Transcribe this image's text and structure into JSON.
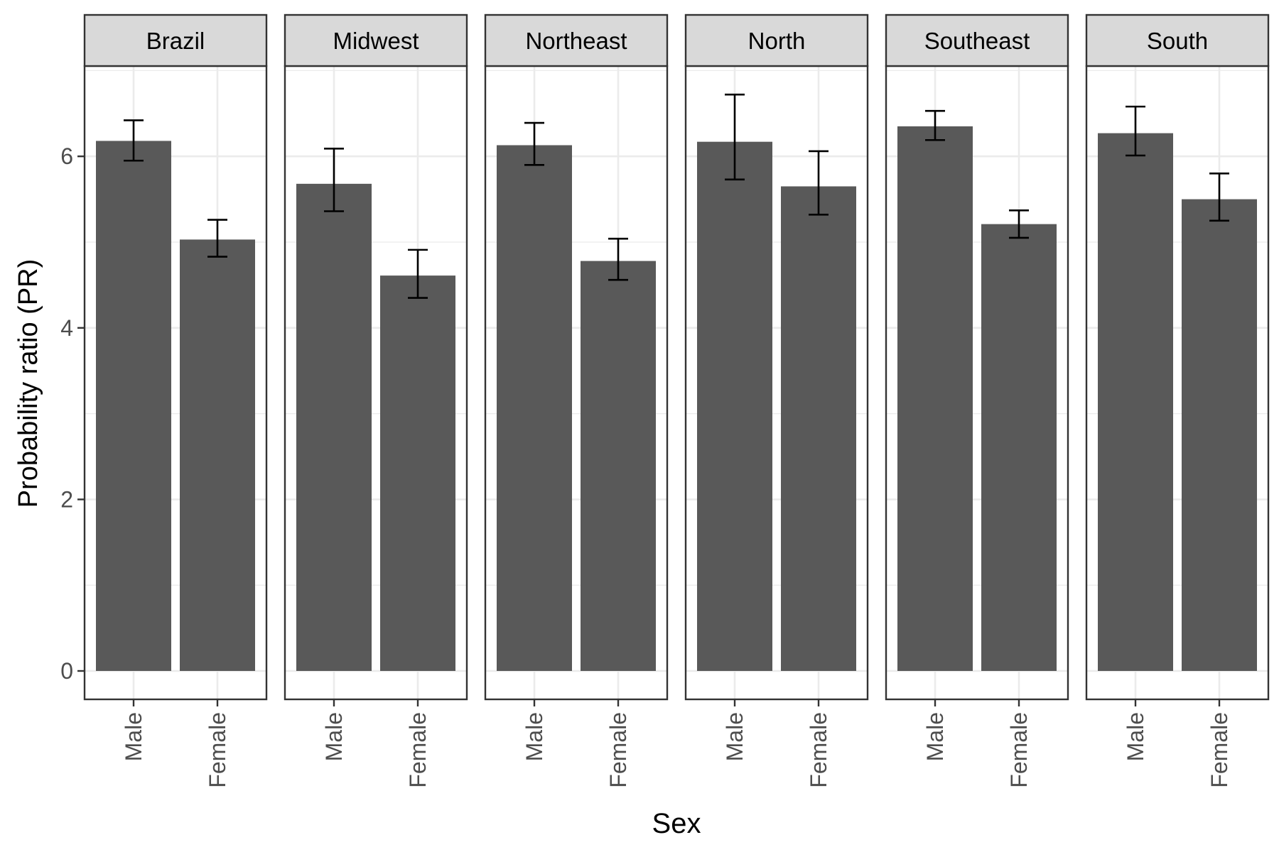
{
  "chart_data": {
    "type": "bar",
    "xlabel": "Sex",
    "ylabel": "Probability ratio (PR)",
    "ylim": [
      0,
      7.1
    ],
    "yticks": [
      0,
      2,
      4,
      6
    ],
    "categories": [
      "Male",
      "Female"
    ],
    "grid": true,
    "legend": "none",
    "facets": [
      {
        "name": "Brazil",
        "values": [
          6.18,
          5.03
        ],
        "lower": [
          5.95,
          4.83
        ],
        "upper": [
          6.42,
          5.26
        ]
      },
      {
        "name": "Midwest",
        "values": [
          5.68,
          4.61
        ],
        "lower": [
          5.36,
          4.35
        ],
        "upper": [
          6.09,
          4.91
        ]
      },
      {
        "name": "Northeast",
        "values": [
          6.13,
          4.78
        ],
        "lower": [
          5.9,
          4.56
        ],
        "upper": [
          6.39,
          5.04
        ]
      },
      {
        "name": "North",
        "values": [
          6.17,
          5.65
        ],
        "lower": [
          5.73,
          5.32
        ],
        "upper": [
          6.72,
          6.06
        ]
      },
      {
        "name": "Southeast",
        "values": [
          6.35,
          5.21
        ],
        "lower": [
          6.19,
          5.05
        ],
        "upper": [
          6.53,
          5.37
        ]
      },
      {
        "name": "South",
        "values": [
          6.27,
          5.5
        ],
        "lower": [
          6.01,
          5.25
        ],
        "upper": [
          6.58,
          5.8
        ]
      }
    ],
    "colors": {
      "bar": "#595959",
      "panel_border": "#333333",
      "strip_fill": "#d9d9d9",
      "grid": "#ebebeb",
      "error_bar": "#000000"
    }
  }
}
